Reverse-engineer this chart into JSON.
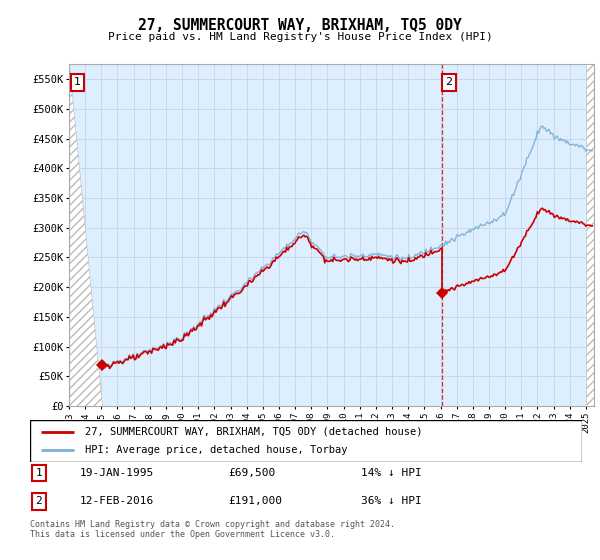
{
  "title": "27, SUMMERCOURT WAY, BRIXHAM, TQ5 0DY",
  "subtitle": "Price paid vs. HM Land Registry's House Price Index (HPI)",
  "ylabel_ticks": [
    "£0",
    "£50K",
    "£100K",
    "£150K",
    "£200K",
    "£250K",
    "£300K",
    "£350K",
    "£400K",
    "£450K",
    "£500K",
    "£550K"
  ],
  "ytick_values": [
    0,
    50000,
    100000,
    150000,
    200000,
    250000,
    300000,
    350000,
    400000,
    450000,
    500000,
    550000
  ],
  "ylim": [
    0,
    575000
  ],
  "xlim_start": 1993.0,
  "xlim_end": 2025.5,
  "sale1_year": 1995.05,
  "sale1_price": 69500,
  "sale1_label": "1",
  "sale2_year": 2016.12,
  "sale2_price": 191000,
  "sale2_label": "2",
  "hpi_color": "#7bafd4",
  "price_color": "#cc0000",
  "legend_line1": "27, SUMMERCOURT WAY, BRIXHAM, TQ5 0DY (detached house)",
  "legend_line2": "HPI: Average price, detached house, Torbay",
  "annotation1_date": "19-JAN-1995",
  "annotation1_price": "£69,500",
  "annotation1_hpi": "14% ↓ HPI",
  "annotation2_date": "12-FEB-2016",
  "annotation2_price": "£191,000",
  "annotation2_hpi": "36% ↓ HPI",
  "footer": "Contains HM Land Registry data © Crown copyright and database right 2024.\nThis data is licensed under the Open Government Licence v3.0.",
  "background_color": "#ffffff",
  "grid_color": "#c8d8e8",
  "plot_bg_color": "#ddeeff"
}
